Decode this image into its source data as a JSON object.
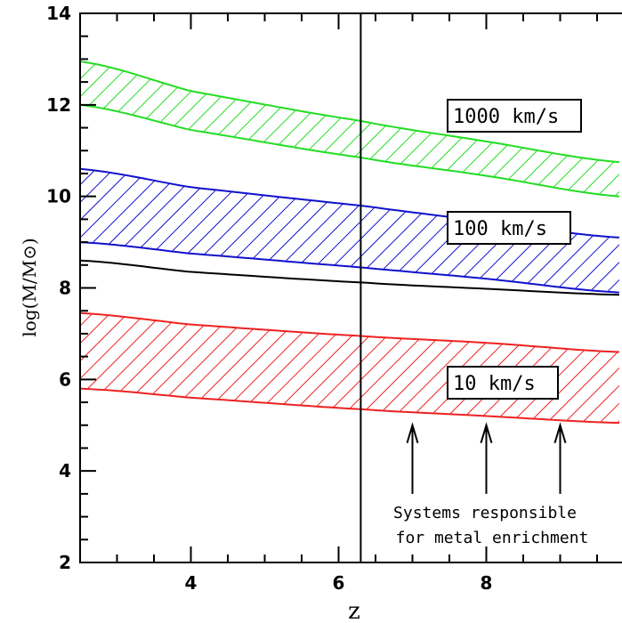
{
  "chart_data": {
    "type": "area",
    "title": "",
    "xlabel": "z",
    "ylabel": "log(M/M⊙)",
    "xlim": [
      2.5,
      9.8
    ],
    "ylim": [
      2,
      14
    ],
    "x_ticks": [
      4,
      6,
      8
    ],
    "y_ticks": [
      2,
      4,
      6,
      8,
      10,
      12,
      14
    ],
    "x_minor_step": 0.5,
    "y_minor_step": 0.5,
    "grid": false,
    "bands": [
      {
        "name": "1000 km/s",
        "color": "#22dd22",
        "x": [
          2.5,
          4,
          6.3,
          8,
          9.8
        ],
        "lower": [
          12.0,
          11.45,
          10.85,
          10.45,
          10.0
        ],
        "upper": [
          12.95,
          12.3,
          11.65,
          11.2,
          10.75
        ]
      },
      {
        "name": "100 km/s",
        "color": "#1111cc",
        "x": [
          2.5,
          4,
          6.3,
          8,
          9.8
        ],
        "lower": [
          9.0,
          8.75,
          8.45,
          8.2,
          7.9
        ],
        "upper": [
          10.6,
          10.2,
          9.8,
          9.45,
          9.1
        ]
      },
      {
        "name": "10 km/s",
        "color": "#ee2222",
        "x": [
          2.5,
          4,
          6.3,
          8,
          9.8
        ],
        "lower": [
          5.8,
          5.6,
          5.35,
          5.2,
          5.05
        ],
        "upper": [
          7.45,
          7.2,
          6.95,
          6.8,
          6.6
        ]
      }
    ],
    "curve": {
      "color": "#000000",
      "x": [
        2.5,
        4,
        6.3,
        8,
        9.8
      ],
      "y": [
        8.6,
        8.35,
        8.12,
        7.98,
        7.85
      ]
    },
    "vertical_line": {
      "x": 6.3,
      "color": "#000000"
    },
    "arrows": [
      {
        "x": 7,
        "y_from": 3.5,
        "y_to": 5.0
      },
      {
        "x": 8,
        "y_from": 3.5,
        "y_to": 5.0
      },
      {
        "x": 9,
        "y_from": 3.5,
        "y_to": 5.0
      }
    ],
    "annotation": [
      "Systems responsible",
      "for metal enrichment"
    ]
  }
}
